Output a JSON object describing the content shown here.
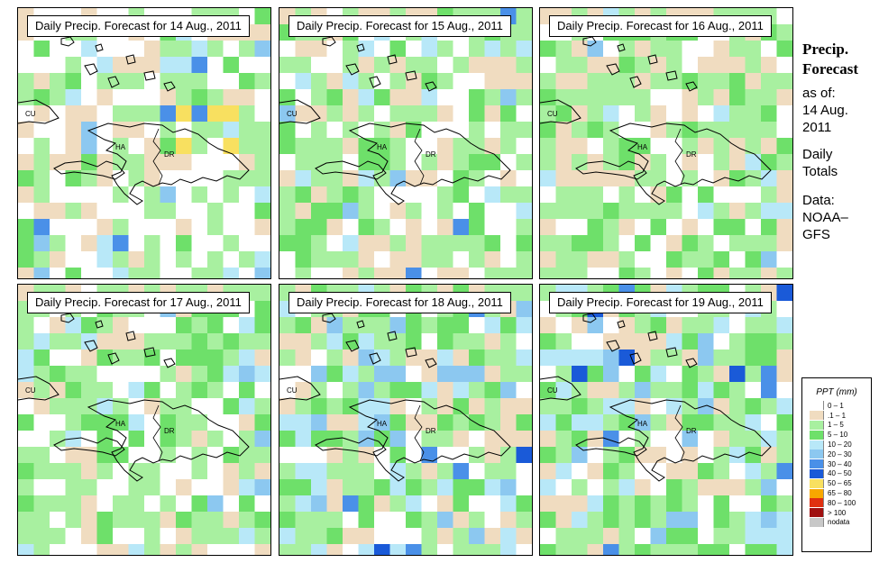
{
  "panels": [
    {
      "title": "Daily Precip. Forecast for  14 Aug., 2011"
    },
    {
      "title": "Daily Precip. Forecast for  15 Aug., 2011"
    },
    {
      "title": "Daily Precip. Forecast for  16 Aug., 2011"
    },
    {
      "title": "Daily Precip. Forecast for  17 Aug., 2011"
    },
    {
      "title": "Daily Precip. Forecast for  18 Aug., 2011"
    },
    {
      "title": "Daily Precip. Forecast for  19 Aug., 2011"
    }
  ],
  "map_labels": {
    "cu": "CU",
    "ha": "HA",
    "dr": "DR"
  },
  "side": {
    "title1": "Precip.",
    "title2": "Forecast",
    "asof": "as of:",
    "date1": "14 Aug.",
    "date2": "2011",
    "daily": "Daily",
    "totals": "Totals",
    "data": "Data:",
    "src1": "NOAA–",
    "src2": "GFS"
  },
  "legend": {
    "title": "PPT (mm)",
    "items": [
      {
        "label": "0 – 1",
        "color": "#ffffff"
      },
      {
        "label": ".1 – 1",
        "color": "#f0dcc0"
      },
      {
        "label": "1 – 5",
        "color": "#a8f0a0"
      },
      {
        "label": "5 – 10",
        "color": "#6ee06a"
      },
      {
        "label": "10 – 20",
        "color": "#b8e8f8"
      },
      {
        "label": "20 – 30",
        "color": "#8cc8f0"
      },
      {
        "label": "30 – 40",
        "color": "#4a90e8"
      },
      {
        "label": "40 – 50",
        "color": "#1a5ad8"
      },
      {
        "label": "50 – 65",
        "color": "#f8e060"
      },
      {
        "label": "65 – 80",
        "color": "#f8a800"
      },
      {
        "label": "80 – 100",
        "color": "#e03010"
      },
      {
        "label": "> 100",
        "color": "#a01010"
      },
      {
        "label": "nodata",
        "color": "#c8c8c8"
      }
    ]
  }
}
